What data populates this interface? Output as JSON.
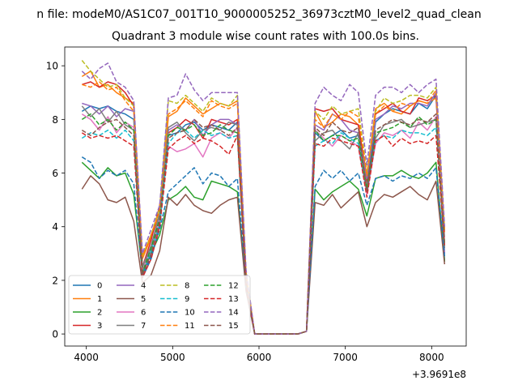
{
  "chart_data": {
    "type": "line",
    "suptitle": "n file: modeM0/AS1C07_001T10_9000005252_36973cztM0_level2_quad_clean",
    "title": "Quadrant 3 module wise count rates with 100.0s bins.",
    "xlabel": "",
    "ylabel": "",
    "x_offset_label": "+3.9691e8",
    "xlim": [
      3750,
      8400
    ],
    "ylim": [
      -0.45,
      10.7
    ],
    "xticks": [
      4000,
      5000,
      6000,
      7000,
      8000
    ],
    "xtick_labels": [
      "4000",
      "5000",
      "6000",
      "7000",
      "8000"
    ],
    "yticks": [
      0,
      2,
      4,
      6,
      8,
      10
    ],
    "ytick_labels": [
      "0",
      "2",
      "4",
      "6",
      "8",
      "10"
    ],
    "grid": false,
    "legend": {
      "position": "lower-left",
      "columns": 4
    },
    "x": [
      3950,
      4050,
      4150,
      4250,
      4350,
      4450,
      4550,
      4650,
      4750,
      4850,
      4950,
      5050,
      5150,
      5250,
      5350,
      5450,
      5550,
      5650,
      5750,
      5850,
      5950,
      6050,
      6150,
      6250,
      6350,
      6450,
      6550,
      6650,
      6750,
      6850,
      6950,
      7050,
      7150,
      7250,
      7350,
      7450,
      7550,
      7650,
      7750,
      7850,
      7950,
      8050,
      8150
    ],
    "series": [
      {
        "name": "0",
        "color": "#1f77b4",
        "dash": "solid",
        "values": [
          8.3,
          8.5,
          8.4,
          8.5,
          8.3,
          8.2,
          8.0,
          2.1,
          2.8,
          4.0,
          7.4,
          7.5,
          7.8,
          7.9,
          7.6,
          7.8,
          7.7,
          7.6,
          7.9,
          2.0,
          0.0,
          0.0,
          0.0,
          0.0,
          0.0,
          0.0,
          0.1,
          7.5,
          7.2,
          7.4,
          7.6,
          7.3,
          7.4,
          5.5,
          7.9,
          8.2,
          8.4,
          8.3,
          8.2,
          8.6,
          8.4,
          8.9,
          2.7
        ]
      },
      {
        "name": "1",
        "color": "#ff7f0e",
        "dash": "solid",
        "values": [
          9.6,
          9.8,
          9.2,
          9.3,
          9.0,
          8.8,
          8.6,
          2.8,
          3.6,
          4.5,
          8.1,
          8.3,
          8.8,
          8.5,
          8.2,
          8.4,
          8.6,
          8.5,
          8.7,
          2.2,
          0.0,
          0.0,
          0.0,
          0.0,
          0.0,
          0.0,
          0.1,
          8.3,
          7.7,
          7.9,
          8.2,
          8.1,
          7.8,
          5.9,
          8.4,
          8.6,
          8.3,
          8.2,
          8.5,
          8.7,
          8.6,
          8.8,
          3.8
        ]
      },
      {
        "name": "2",
        "color": "#2ca02c",
        "dash": "solid",
        "values": [
          6.4,
          6.1,
          5.8,
          6.2,
          5.9,
          6.0,
          5.2,
          2.3,
          3.0,
          3.7,
          5.0,
          5.2,
          5.5,
          5.1,
          5.0,
          5.7,
          5.6,
          5.5,
          5.3,
          1.8,
          0.0,
          0.0,
          0.0,
          0.0,
          0.0,
          0.0,
          0.1,
          5.4,
          5.0,
          5.3,
          5.5,
          5.7,
          5.4,
          4.4,
          5.8,
          5.9,
          5.9,
          6.1,
          5.9,
          5.8,
          6.0,
          6.4,
          2.7
        ]
      },
      {
        "name": "3",
        "color": "#d62728",
        "dash": "solid",
        "values": [
          9.3,
          9.4,
          9.2,
          9.4,
          9.3,
          9.0,
          8.5,
          2.5,
          3.5,
          4.8,
          7.5,
          7.7,
          8.0,
          7.8,
          7.3,
          8.0,
          7.9,
          7.8,
          8.0,
          2.0,
          0.0,
          0.0,
          0.0,
          0.0,
          0.0,
          0.0,
          0.1,
          8.4,
          8.3,
          8.4,
          8.0,
          7.9,
          7.8,
          5.7,
          8.2,
          8.4,
          8.6,
          8.3,
          8.2,
          8.8,
          8.7,
          8.9,
          3.8
        ]
      },
      {
        "name": "4",
        "color": "#9467bd",
        "dash": "solid",
        "values": [
          8.6,
          8.5,
          8.2,
          8.5,
          8.1,
          8.4,
          8.3,
          2.5,
          3.2,
          4.4,
          7.6,
          7.8,
          7.6,
          8.0,
          7.4,
          7.8,
          8.0,
          8.0,
          7.8,
          2.0,
          0.0,
          0.0,
          0.0,
          0.0,
          0.0,
          0.0,
          0.1,
          7.8,
          7.6,
          8.2,
          8.0,
          7.6,
          7.5,
          5.8,
          8.0,
          8.2,
          8.5,
          8.4,
          8.6,
          8.6,
          8.5,
          9.0,
          3.0
        ]
      },
      {
        "name": "5",
        "color": "#8c564b",
        "dash": "solid",
        "values": [
          5.4,
          5.9,
          5.6,
          5.0,
          4.9,
          5.1,
          4.2,
          1.9,
          2.2,
          3.1,
          5.1,
          4.8,
          5.2,
          4.8,
          4.6,
          4.5,
          4.8,
          5.0,
          5.1,
          1.6,
          0.0,
          0.0,
          0.0,
          0.0,
          0.0,
          0.0,
          0.1,
          4.9,
          4.8,
          5.2,
          4.7,
          5.0,
          5.3,
          4.0,
          4.9,
          5.2,
          5.1,
          5.3,
          5.5,
          5.2,
          5.0,
          5.7,
          2.6
        ]
      },
      {
        "name": "6",
        "color": "#e377c2",
        "dash": "solid",
        "values": [
          8.2,
          8.0,
          7.6,
          8.1,
          7.5,
          7.9,
          7.7,
          2.4,
          3.1,
          4.3,
          7.0,
          6.8,
          6.9,
          7.1,
          6.6,
          7.3,
          7.5,
          7.3,
          7.7,
          1.9,
          0.0,
          0.0,
          0.0,
          0.0,
          0.0,
          0.0,
          0.1,
          7.6,
          7.3,
          7.0,
          7.4,
          7.2,
          7.0,
          5.2,
          7.1,
          7.5,
          7.4,
          7.6,
          7.3,
          7.9,
          7.6,
          8.1,
          3.6
        ]
      },
      {
        "name": "7",
        "color": "#7f7f7f",
        "dash": "solid",
        "values": [
          8.5,
          8.1,
          8.4,
          7.9,
          8.3,
          7.8,
          7.6,
          2.5,
          3.3,
          4.5,
          7.7,
          7.9,
          7.5,
          7.2,
          7.6,
          7.7,
          7.6,
          7.9,
          7.8,
          2.0,
          0.0,
          0.0,
          0.0,
          0.0,
          0.0,
          0.0,
          0.1,
          7.2,
          7.5,
          7.6,
          7.2,
          6.9,
          7.5,
          5.5,
          7.3,
          7.8,
          7.9,
          8.0,
          7.7,
          7.8,
          7.9,
          8.0,
          3.2
        ]
      },
      {
        "name": "8",
        "color": "#bcbd22",
        "dash": "dashed",
        "values": [
          10.2,
          9.8,
          9.5,
          9.2,
          9.3,
          8.8,
          8.5,
          2.9,
          3.7,
          4.7,
          8.7,
          8.6,
          8.9,
          8.6,
          8.3,
          8.8,
          8.6,
          8.5,
          8.9,
          2.3,
          0.0,
          0.0,
          0.0,
          0.0,
          0.0,
          0.0,
          0.1,
          8.3,
          8.0,
          8.5,
          8.2,
          8.3,
          8.4,
          6.0,
          8.3,
          8.8,
          8.6,
          8.7,
          8.9,
          8.9,
          8.8,
          9.2,
          3.9
        ]
      },
      {
        "name": "9",
        "color": "#17becf",
        "dash": "dashed",
        "values": [
          7.3,
          7.5,
          7.4,
          7.6,
          7.3,
          7.6,
          7.2,
          2.2,
          3.1,
          4.1,
          7.1,
          7.5,
          7.6,
          7.3,
          7.6,
          7.4,
          7.5,
          7.3,
          7.4,
          1.8,
          0.0,
          0.0,
          0.0,
          0.0,
          0.0,
          0.0,
          0.1,
          7.0,
          7.2,
          7.1,
          7.5,
          7.3,
          7.1,
          5.3,
          7.2,
          7.4,
          7.3,
          7.6,
          7.5,
          7.5,
          7.4,
          7.7,
          3.3
        ]
      },
      {
        "name": "10",
        "color": "#1f77b4",
        "dash": "dashed",
        "values": [
          6.6,
          6.4,
          5.8,
          6.1,
          5.9,
          6.1,
          5.6,
          2.2,
          2.9,
          3.9,
          5.3,
          5.6,
          5.9,
          6.2,
          5.6,
          6.0,
          5.9,
          5.5,
          5.8,
          1.8,
          0.0,
          0.0,
          0.0,
          0.0,
          0.0,
          0.0,
          0.1,
          5.5,
          6.1,
          5.8,
          6.1,
          5.7,
          6.0,
          4.8,
          5.8,
          5.9,
          5.7,
          5.9,
          5.8,
          6.0,
          5.8,
          6.2,
          2.9
        ]
      },
      {
        "name": "11",
        "color": "#ff7f0e",
        "dash": "dashed",
        "values": [
          9.3,
          9.2,
          9.4,
          9.1,
          9.2,
          8.7,
          8.3,
          2.9,
          3.7,
          4.6,
          8.2,
          8.4,
          8.7,
          8.4,
          8.1,
          8.7,
          8.5,
          8.4,
          8.6,
          2.2,
          0.0,
          0.0,
          0.0,
          0.0,
          0.0,
          0.0,
          0.1,
          8.0,
          7.7,
          8.2,
          8.0,
          8.3,
          8.1,
          5.9,
          8.2,
          8.5,
          8.3,
          8.6,
          8.5,
          8.7,
          8.6,
          9.1,
          3.8
        ]
      },
      {
        "name": "12",
        "color": "#2ca02c",
        "dash": "dashed",
        "values": [
          8.0,
          8.2,
          7.8,
          8.0,
          7.6,
          7.9,
          7.6,
          2.3,
          3.2,
          4.3,
          7.4,
          7.7,
          7.6,
          7.8,
          7.4,
          7.5,
          7.8,
          7.6,
          7.5,
          1.9,
          0.0,
          0.0,
          0.0,
          0.0,
          0.0,
          0.0,
          0.1,
          7.6,
          7.2,
          7.4,
          7.4,
          7.2,
          7.3,
          5.4,
          7.5,
          7.6,
          7.7,
          7.9,
          7.7,
          8.1,
          7.8,
          8.0,
          3.4
        ]
      },
      {
        "name": "13",
        "color": "#d62728",
        "dash": "dashed",
        "values": [
          7.5,
          7.3,
          7.4,
          7.3,
          7.4,
          7.2,
          7.0,
          2.1,
          2.8,
          4.0,
          6.9,
          7.2,
          7.4,
          7.1,
          7.3,
          7.2,
          7.0,
          6.7,
          7.4,
          1.8,
          0.0,
          0.0,
          0.0,
          0.0,
          0.0,
          0.0,
          0.1,
          7.1,
          7.0,
          7.3,
          7.2,
          7.1,
          7.0,
          5.1,
          7.2,
          7.4,
          7.0,
          7.3,
          7.1,
          7.2,
          7.1,
          7.4,
          3.3
        ]
      },
      {
        "name": "14",
        "color": "#9467bd",
        "dash": "dashed",
        "values": [
          9.8,
          9.5,
          9.9,
          10.1,
          9.4,
          9.2,
          8.7,
          3.0,
          3.9,
          4.8,
          8.8,
          8.9,
          9.7,
          9.1,
          8.7,
          9.0,
          9.0,
          9.0,
          9.0,
          2.4,
          0.0,
          0.0,
          0.0,
          0.0,
          0.0,
          0.0,
          0.1,
          8.6,
          9.2,
          8.9,
          8.7,
          9.3,
          9.0,
          6.3,
          8.9,
          9.2,
          9.2,
          9.0,
          9.3,
          9.0,
          9.3,
          9.5,
          4.0
        ]
      },
      {
        "name": "15",
        "color": "#8c564b",
        "dash": "dashed",
        "values": [
          7.6,
          7.4,
          7.7,
          7.9,
          8.0,
          7.7,
          7.4,
          2.2,
          3.0,
          4.2,
          7.3,
          7.5,
          7.6,
          8.0,
          7.7,
          7.8,
          7.6,
          7.4,
          7.7,
          1.9,
          0.0,
          0.0,
          0.0,
          0.0,
          0.0,
          0.0,
          0.1,
          7.7,
          7.4,
          7.9,
          7.6,
          7.5,
          7.7,
          5.3,
          7.6,
          7.8,
          8.0,
          7.9,
          7.8,
          8.0,
          7.9,
          8.2,
          3.3
        ]
      }
    ]
  }
}
